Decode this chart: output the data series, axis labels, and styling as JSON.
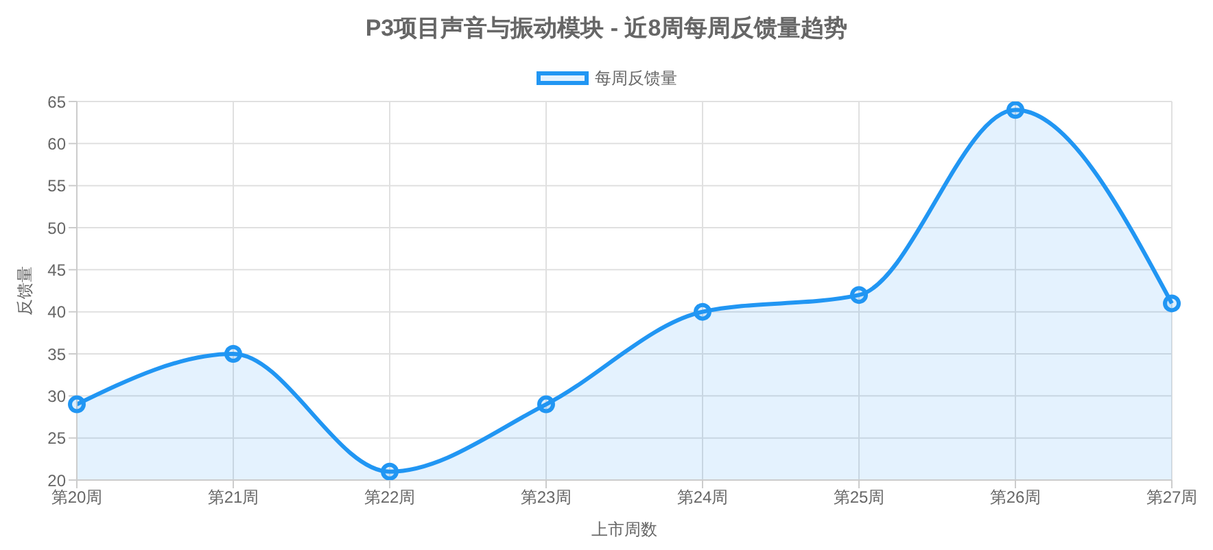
{
  "chart_data": {
    "type": "area",
    "title": "P3项目声音与振动模块 - 近8周每周反馈量趋势",
    "xlabel": "上市周数",
    "ylabel": "反馈量",
    "categories": [
      "第20周",
      "第21周",
      "第22周",
      "第23周",
      "第24周",
      "第25周",
      "第26周",
      "第27周"
    ],
    "series": [
      {
        "name": "每周反馈量",
        "color": "#2196f3",
        "values": [
          29,
          35,
          21,
          29,
          40,
          42,
          64,
          41
        ]
      }
    ],
    "ylim": [
      20,
      65
    ],
    "yticks": [
      20,
      25,
      30,
      35,
      40,
      45,
      50,
      55,
      60,
      65
    ],
    "grid": true,
    "legend": "top",
    "marker": "circle",
    "line_style": "solid"
  }
}
